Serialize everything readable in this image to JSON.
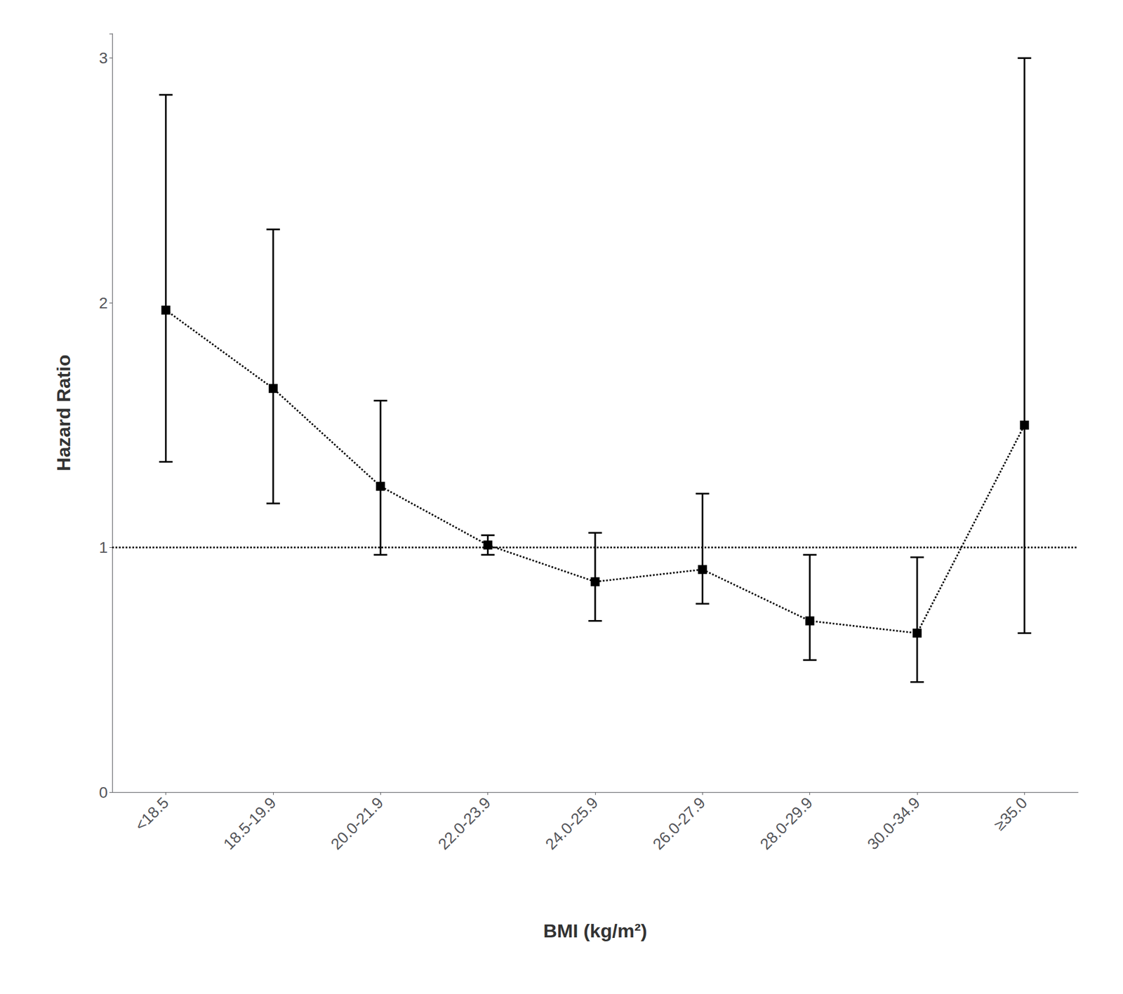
{
  "chart_data": {
    "type": "line",
    "categories": [
      "<18.5",
      "18.5-19.9",
      "20.0-21.9",
      "22.0-23.9",
      "24.0-25.9",
      "26.0-27.9",
      "28.0-29.9",
      "30.0-34.9",
      "≥35.0"
    ],
    "values": [
      1.97,
      1.65,
      1.25,
      1.01,
      0.86,
      0.91,
      0.7,
      0.65,
      1.5
    ],
    "ci_low": [
      1.35,
      1.18,
      0.97,
      0.97,
      0.7,
      0.77,
      0.54,
      0.45,
      0.65
    ],
    "ci_high": [
      2.85,
      2.3,
      1.6,
      1.05,
      1.06,
      1.22,
      0.97,
      0.96,
      3.0
    ],
    "reference_line": 1.0,
    "xlabel": "BMI (kg/m²)",
    "ylabel": "Hazard Ratio",
    "ylim": [
      0,
      3.1
    ],
    "yticks": [
      0,
      1,
      2,
      3
    ],
    "color": "#000000",
    "marker": "square",
    "line_style": "dotted",
    "grid": false
  }
}
